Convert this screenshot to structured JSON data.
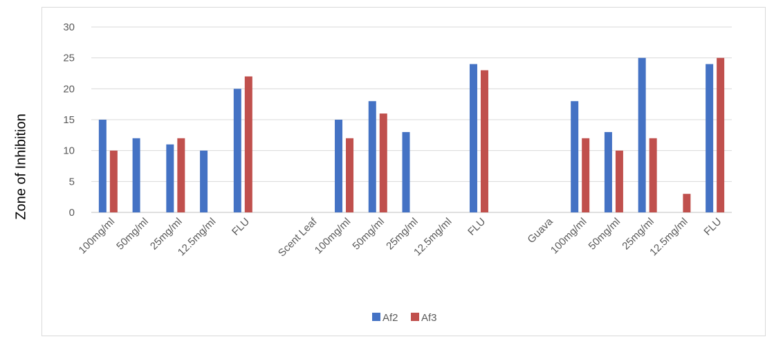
{
  "chart_data": {
    "type": "bar",
    "title": "",
    "xlabel": "",
    "ylabel": "Zone of Inhibition",
    "ylim": [
      0,
      30
    ],
    "yticks": [
      0,
      5,
      10,
      15,
      20,
      25,
      30
    ],
    "grid": true,
    "legend_position": "bottom",
    "categories": [
      "100mg/ml",
      "50mg/ml",
      "25mg/ml",
      "12.5mg/ml",
      "FLU",
      "",
      "Scent Leaf",
      "100mg/ml",
      "50mg/ml",
      "25mg/ml",
      "12.5mg/ml",
      "FLU",
      "",
      "Guava",
      "100mg/ml",
      "50mg/ml",
      "25mg/ml",
      "12.5mg/ml",
      "FLU"
    ],
    "series": [
      {
        "name": "Af2",
        "color": "#4472c4",
        "values": [
          15,
          12,
          11,
          10,
          20,
          null,
          null,
          15,
          18,
          13,
          null,
          24,
          null,
          null,
          18,
          13,
          25,
          null,
          24
        ]
      },
      {
        "name": "Af3",
        "color": "#c0504d",
        "values": [
          10,
          null,
          12,
          null,
          22,
          null,
          null,
          12,
          16,
          null,
          null,
          23,
          null,
          null,
          12,
          10,
          12,
          3,
          25
        ]
      }
    ]
  }
}
